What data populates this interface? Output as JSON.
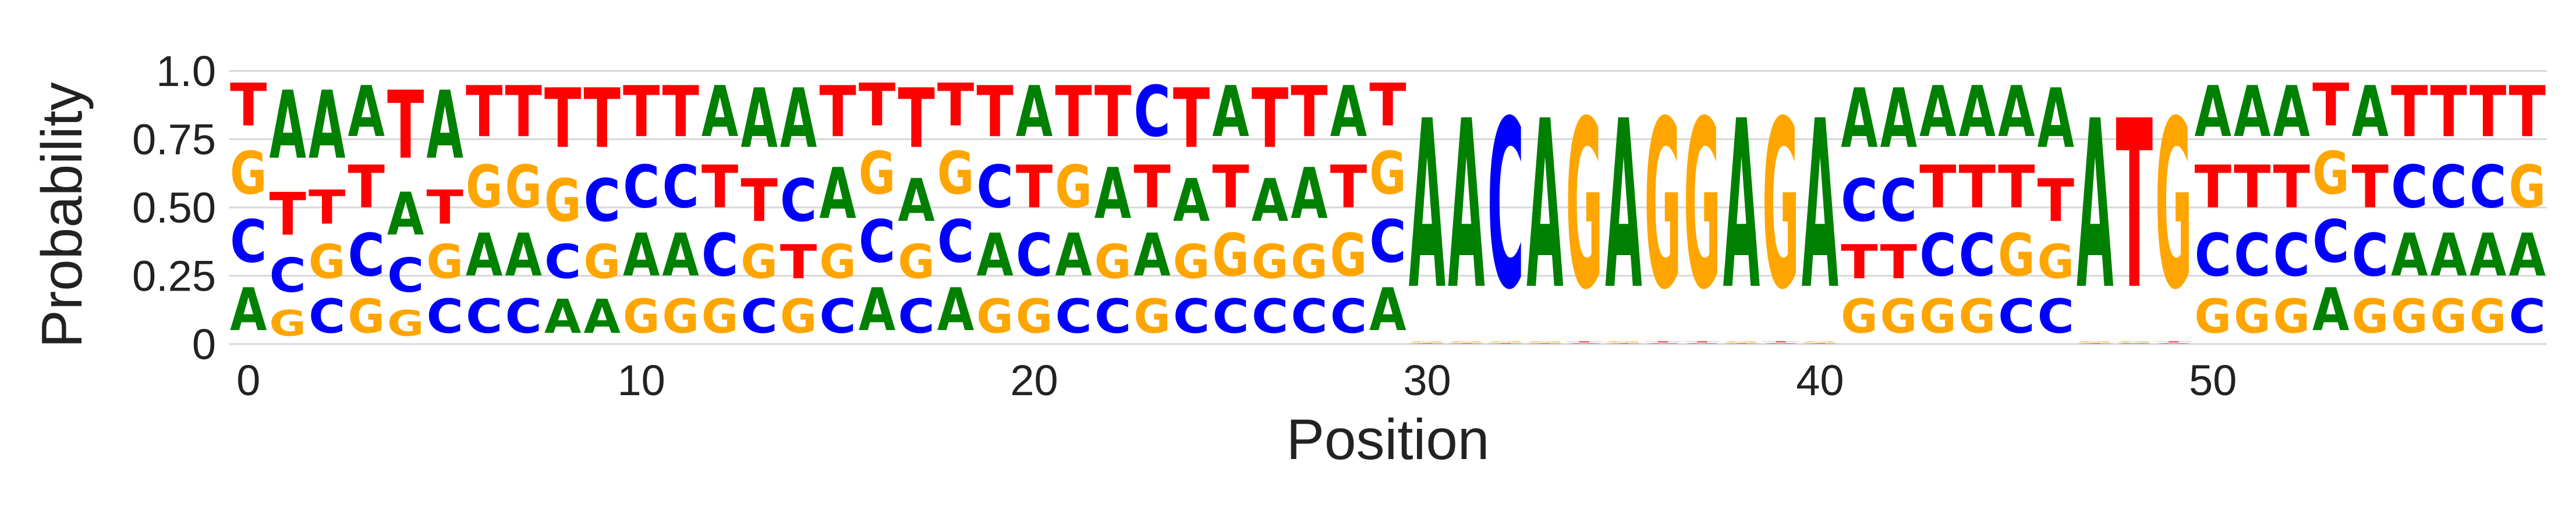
{
  "chart_data": {
    "type": "sequence-logo",
    "title": "",
    "xlabel": "Position",
    "ylabel": "Probability",
    "xlim": [
      -0.5,
      58.5
    ],
    "ylim": [
      0,
      1
    ],
    "x_ticks": [
      0,
      10,
      20,
      30,
      40,
      50
    ],
    "y_ticks": [
      0,
      0.25,
      0.5,
      0.75,
      1.0
    ],
    "y_tick_labels": [
      "0",
      "0.25",
      "0.50",
      "0.75",
      "1.0"
    ],
    "grid": "horizontal",
    "colors": {
      "A": "#008000",
      "C": "#0000ff",
      "G": "#ffa500",
      "T": "#ff0000"
    },
    "positions": [
      {
        "pos": 0,
        "A": 0.25,
        "C": 0.25,
        "G": 0.25,
        "T": 0.25
      },
      {
        "pos": 1,
        "A": 0.4,
        "C": 0.2,
        "G": 0.15,
        "T": 0.25
      },
      {
        "pos": 2,
        "A": 0.4,
        "C": 0.2,
        "G": 0.2,
        "T": 0.2
      },
      {
        "pos": 3,
        "A": 0.3,
        "C": 0.25,
        "G": 0.2,
        "T": 0.25
      },
      {
        "pos": 4,
        "A": 0.25,
        "C": 0.2,
        "G": 0.15,
        "T": 0.4
      },
      {
        "pos": 5,
        "A": 0.4,
        "C": 0.2,
        "G": 0.2,
        "T": 0.2
      },
      {
        "pos": 6,
        "A": 0.25,
        "C": 0.2,
        "G": 0.25,
        "T": 0.3
      },
      {
        "pos": 7,
        "A": 0.25,
        "C": 0.2,
        "G": 0.25,
        "T": 0.3
      },
      {
        "pos": 8,
        "A": 0.2,
        "C": 0.2,
        "G": 0.25,
        "T": 0.35
      },
      {
        "pos": 9,
        "A": 0.2,
        "C": 0.25,
        "G": 0.2,
        "T": 0.35
      },
      {
        "pos": 10,
        "A": 0.25,
        "C": 0.25,
        "G": 0.2,
        "T": 0.3
      },
      {
        "pos": 11,
        "A": 0.25,
        "C": 0.25,
        "G": 0.2,
        "T": 0.3
      },
      {
        "pos": 12,
        "A": 0.3,
        "C": 0.25,
        "G": 0.2,
        "T": 0.25
      },
      {
        "pos": 13,
        "A": 0.35,
        "C": 0.2,
        "G": 0.2,
        "T": 0.25
      },
      {
        "pos": 14,
        "A": 0.35,
        "C": 0.25,
        "G": 0.2,
        "T": 0.2
      },
      {
        "pos": 15,
        "A": 0.3,
        "C": 0.2,
        "G": 0.2,
        "T": 0.3
      },
      {
        "pos": 16,
        "A": 0.25,
        "C": 0.25,
        "G": 0.25,
        "T": 0.25
      },
      {
        "pos": 17,
        "A": 0.25,
        "C": 0.2,
        "G": 0.2,
        "T": 0.35
      },
      {
        "pos": 18,
        "A": 0.25,
        "C": 0.25,
        "G": 0.25,
        "T": 0.25
      },
      {
        "pos": 19,
        "A": 0.25,
        "C": 0.25,
        "G": 0.2,
        "T": 0.3
      },
      {
        "pos": 20,
        "A": 0.3,
        "C": 0.25,
        "G": 0.2,
        "T": 0.25
      },
      {
        "pos": 21,
        "A": 0.25,
        "C": 0.2,
        "G": 0.25,
        "T": 0.3
      },
      {
        "pos": 22,
        "A": 0.3,
        "C": 0.2,
        "G": 0.2,
        "T": 0.3
      },
      {
        "pos": 23,
        "A": 0.25,
        "C": 0.3,
        "G": 0.2,
        "T": 0.25
      },
      {
        "pos": 24,
        "A": 0.25,
        "C": 0.2,
        "G": 0.2,
        "T": 0.35
      },
      {
        "pos": 25,
        "A": 0.3,
        "C": 0.2,
        "G": 0.25,
        "T": 0.25
      },
      {
        "pos": 26,
        "A": 0.25,
        "C": 0.2,
        "G": 0.2,
        "T": 0.35
      },
      {
        "pos": 27,
        "A": 0.3,
        "C": 0.2,
        "G": 0.2,
        "T": 0.3
      },
      {
        "pos": 28,
        "A": 0.3,
        "C": 0.2,
        "G": 0.25,
        "T": 0.25
      },
      {
        "pos": 29,
        "A": 0.25,
        "C": 0.25,
        "G": 0.25,
        "T": 0.25
      },
      {
        "pos": 30,
        "A": 0.99,
        "C": 0.003,
        "G": 0.004,
        "T": 0.003
      },
      {
        "pos": 31,
        "A": 0.99,
        "C": 0.003,
        "G": 0.004,
        "T": 0.003
      },
      {
        "pos": 32,
        "A": 0.003,
        "C": 0.99,
        "G": 0.004,
        "T": 0.003
      },
      {
        "pos": 33,
        "A": 0.99,
        "C": 0.003,
        "G": 0.004,
        "T": 0.003
      },
      {
        "pos": 34,
        "A": 0.003,
        "C": 0.003,
        "G": 0.99,
        "T": 0.004
      },
      {
        "pos": 35,
        "A": 0.99,
        "C": 0.003,
        "G": 0.004,
        "T": 0.003
      },
      {
        "pos": 36,
        "A": 0.003,
        "C": 0.003,
        "G": 0.99,
        "T": 0.004
      },
      {
        "pos": 37,
        "A": 0.003,
        "C": 0.003,
        "G": 0.99,
        "T": 0.004
      },
      {
        "pos": 38,
        "A": 0.99,
        "C": 0.003,
        "G": 0.004,
        "T": 0.003
      },
      {
        "pos": 39,
        "A": 0.003,
        "C": 0.003,
        "G": 0.99,
        "T": 0.004
      },
      {
        "pos": 40,
        "A": 0.99,
        "C": 0.003,
        "G": 0.004,
        "T": 0.003
      },
      {
        "pos": 41,
        "A": 0.35,
        "C": 0.25,
        "G": 0.2,
        "T": 0.2
      },
      {
        "pos": 42,
        "A": 0.35,
        "C": 0.25,
        "G": 0.2,
        "T": 0.2
      },
      {
        "pos": 43,
        "A": 0.3,
        "C": 0.25,
        "G": 0.2,
        "T": 0.25
      },
      {
        "pos": 44,
        "A": 0.3,
        "C": 0.25,
        "G": 0.2,
        "T": 0.25
      },
      {
        "pos": 45,
        "A": 0.3,
        "C": 0.2,
        "G": 0.25,
        "T": 0.25
      },
      {
        "pos": 46,
        "A": 0.35,
        "C": 0.2,
        "G": 0.2,
        "T": 0.25
      },
      {
        "pos": 47,
        "A": 0.99,
        "C": 0.003,
        "G": 0.004,
        "T": 0.003
      },
      {
        "pos": 48,
        "A": 0.003,
        "C": 0.003,
        "G": 0.004,
        "T": 0.99
      },
      {
        "pos": 49,
        "A": 0.003,
        "C": 0.003,
        "G": 0.99,
        "T": 0.004
      },
      {
        "pos": 50,
        "A": 0.3,
        "C": 0.25,
        "G": 0.2,
        "T": 0.25
      },
      {
        "pos": 51,
        "A": 0.3,
        "C": 0.25,
        "G": 0.2,
        "T": 0.25
      },
      {
        "pos": 52,
        "A": 0.3,
        "C": 0.25,
        "G": 0.2,
        "T": 0.25
      },
      {
        "pos": 53,
        "A": 0.25,
        "C": 0.25,
        "G": 0.25,
        "T": 0.25
      },
      {
        "pos": 54,
        "A": 0.3,
        "C": 0.25,
        "G": 0.2,
        "T": 0.25
      },
      {
        "pos": 55,
        "A": 0.25,
        "C": 0.25,
        "G": 0.2,
        "T": 0.3
      },
      {
        "pos": 56,
        "A": 0.25,
        "C": 0.25,
        "G": 0.2,
        "T": 0.3
      },
      {
        "pos": 57,
        "A": 0.25,
        "C": 0.25,
        "G": 0.2,
        "T": 0.3
      },
      {
        "pos": 58,
        "A": 0.25,
        "C": 0.2,
        "G": 0.25,
        "T": 0.3
      }
    ]
  }
}
